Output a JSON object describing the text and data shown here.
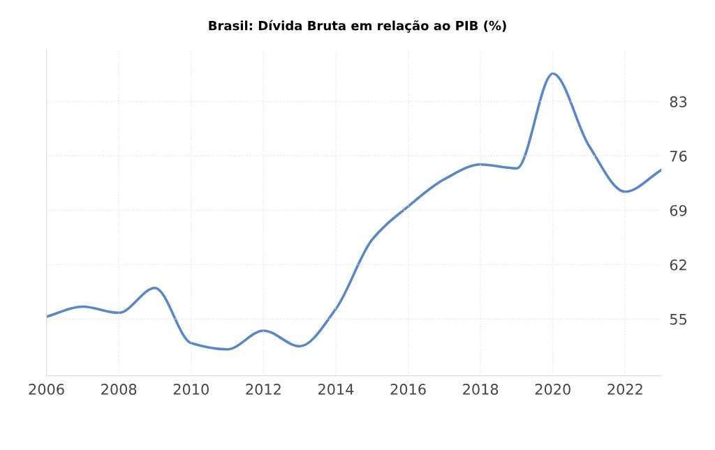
{
  "chart_data": {
    "type": "line",
    "title": "Brasil: Dívida Bruta em relação ao PIB (%)",
    "x": [
      2006,
      2007,
      2008,
      2009,
      2010,
      2011,
      2012,
      2013,
      2014,
      2015,
      2016,
      2017,
      2018,
      2019,
      2020,
      2021,
      2022,
      2023
    ],
    "series": [
      {
        "color": "#5a87c5",
        "values": [
          55.3,
          56.6,
          55.8,
          59.0,
          51.9,
          51.1,
          53.5,
          51.5,
          56.3,
          65.2,
          69.5,
          73.0,
          74.9,
          74.4,
          86.6,
          77.3,
          71.4,
          74.2
        ]
      }
    ],
    "xlim": [
      2006,
      2023
    ],
    "xticks": [
      2006,
      2008,
      2010,
      2012,
      2014,
      2016,
      2018,
      2020,
      2022
    ],
    "ylim": [
      47.7,
      89.7
    ],
    "yticks": [
      55,
      62,
      69,
      76,
      83
    ],
    "grid": true,
    "legend": false,
    "marker": "none",
    "line_style": "solid"
  }
}
